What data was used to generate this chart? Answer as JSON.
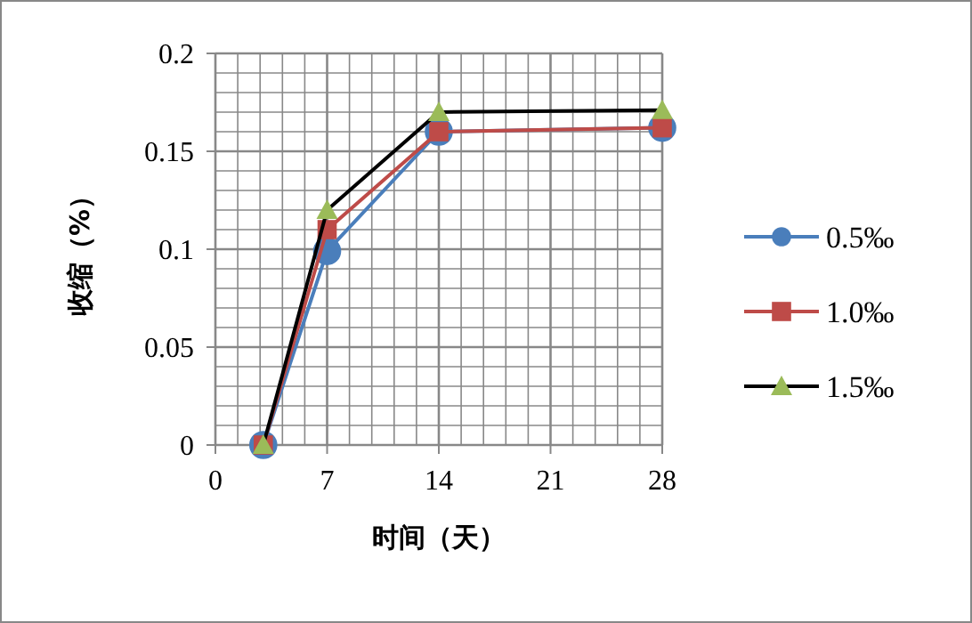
{
  "chart_data": {
    "type": "line",
    "xlabel": "时间（天）",
    "ylabel": "收缩（%）",
    "xlim": [
      0,
      28
    ],
    "xticks": [
      0,
      7,
      14,
      21,
      28
    ],
    "ylim": [
      0,
      0.2
    ],
    "yticks": [
      0,
      0.05,
      0.1,
      0.15,
      0.2
    ],
    "grid": true,
    "legend": "right",
    "x": [
      3,
      7,
      14,
      28
    ],
    "series": [
      {
        "name": "0.5‰",
        "color": "#4a7ebb",
        "marker": "circle",
        "values": [
          0,
          0.099,
          0.16,
          0.162
        ]
      },
      {
        "name": "1.0‰",
        "color": "#be4b48",
        "marker": "square",
        "values": [
          0,
          0.11,
          0.16,
          0.162
        ]
      },
      {
        "name": "1.5‰",
        "color": "#000000",
        "marker": "triangle",
        "values": [
          0,
          0.12,
          0.17,
          0.171
        ]
      }
    ]
  }
}
